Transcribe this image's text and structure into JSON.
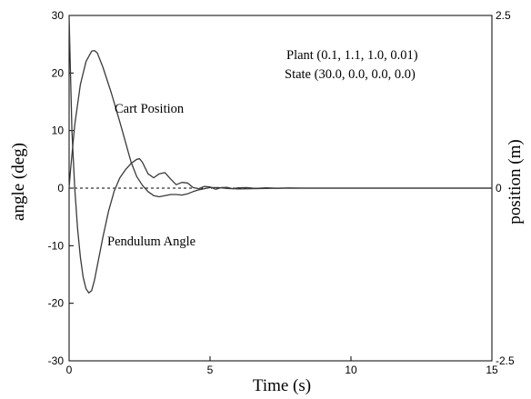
{
  "chart_data": {
    "type": "line",
    "xlabel": "Time (s)",
    "ylabel_left": "angle (deg)",
    "ylabel_right": "position (m)",
    "xlim": [
      0,
      15
    ],
    "ylim_left": [
      -30,
      30
    ],
    "ylim_right": [
      -2.5,
      2.5
    ],
    "x_ticks": [
      "0",
      "5",
      "10",
      "15"
    ],
    "y_left_ticks": [
      "30",
      "20",
      "10",
      "0",
      "-10",
      "-20",
      "-30"
    ],
    "y_right_ticks": [
      "2.5",
      "0",
      "-2.5"
    ],
    "grid": false,
    "annotations": {
      "plant": "Plant (0.1, 1.1, 1.0, 0.01)",
      "state": "State (30.0, 0.0, 0.0, 0.0)"
    },
    "series": [
      {
        "name": "Cart Position",
        "axis": "left",
        "x": [
          0,
          0.05,
          0.2,
          0.4,
          0.6,
          0.8,
          0.9,
          1.0,
          1.2,
          1.5,
          1.8,
          2.0,
          2.2,
          2.4,
          2.6,
          2.8,
          3.0,
          3.2,
          3.4,
          3.6,
          3.8,
          4.0,
          4.2,
          4.4,
          4.6,
          4.8,
          5.0,
          5.3,
          5.6,
          6.0,
          6.5,
          7.0,
          7.5,
          8.0,
          15.0
        ],
        "y": [
          0,
          3,
          11,
          18,
          22,
          23.8,
          23.9,
          23.5,
          21,
          16.5,
          11.5,
          8,
          4.5,
          2.0,
          0.5,
          -0.6,
          -1.3,
          -1.5,
          -1.3,
          -1.1,
          -1.1,
          -1.2,
          -1.0,
          -0.6,
          -0.3,
          -0.1,
          0.1,
          0.1,
          -0.05,
          -0.15,
          -0.1,
          -0.05,
          0,
          0,
          0
        ]
      },
      {
        "name": "Pendulum Angle",
        "axis": "left",
        "x": [
          0,
          0.04,
          0.1,
          0.2,
          0.3,
          0.4,
          0.5,
          0.6,
          0.7,
          0.8,
          0.9,
          1.0,
          1.2,
          1.4,
          1.6,
          1.8,
          2.0,
          2.2,
          2.4,
          2.5,
          2.6,
          2.8,
          3.0,
          3.2,
          3.4,
          3.6,
          3.8,
          4.0,
          4.2,
          4.4,
          4.6,
          4.8,
          5.0,
          5.2,
          5.4,
          5.6,
          5.8,
          6.0,
          6.3,
          6.6,
          7.0,
          7.4,
          7.8,
          8.2,
          15.0
        ],
        "y": [
          30,
          22,
          10,
          0,
          -7,
          -12,
          -15.5,
          -17.5,
          -18.2,
          -17.8,
          -16,
          -13.5,
          -8.5,
          -4,
          -0.5,
          1.8,
          3.2,
          4.3,
          5.0,
          5.1,
          4.5,
          2.5,
          1.8,
          2.5,
          2.7,
          1.6,
          0.6,
          1.0,
          0.9,
          0.1,
          -0.1,
          0.3,
          0.2,
          -0.2,
          0.1,
          0.15,
          -0.1,
          0.05,
          0.1,
          -0.05,
          0.05,
          -0.03,
          0.03,
          0,
          0
        ]
      }
    ]
  }
}
